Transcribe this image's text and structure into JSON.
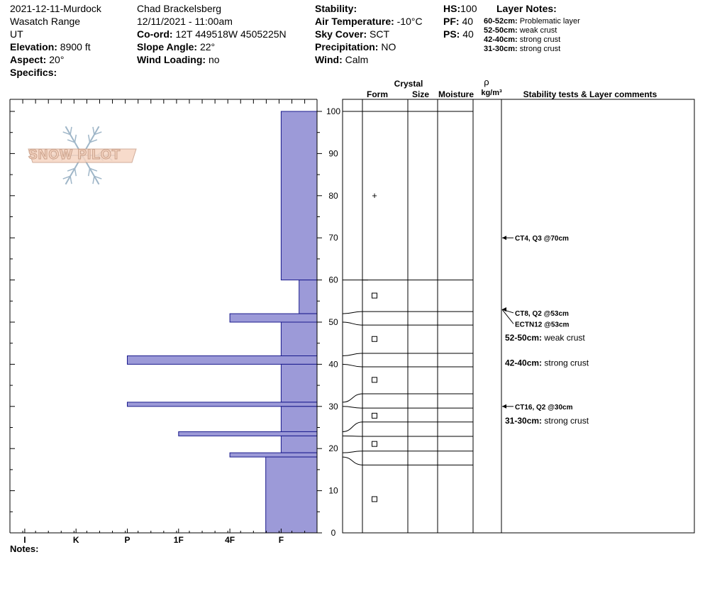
{
  "header": {
    "col1": {
      "site": "2021-12-11-Murdock",
      "range": "Wasatch Range",
      "state": "UT",
      "elevation_label": "Elevation:",
      "elevation": "8900 ft",
      "aspect_label": "Aspect:",
      "aspect": "20°",
      "specifics_label": "Specifics:"
    },
    "col2": {
      "observer": "Chad Brackelsberg",
      "datetime": "12/11/2021 - 11:00am",
      "coord_label": "Co-ord:",
      "coord": "12T 449518W 4505225N",
      "slope_label": "Slope Angle:",
      "slope": "22°",
      "wind_loading_label": "Wind Loading:",
      "wind_loading": "no"
    },
    "col3": {
      "stability_label": "Stability:",
      "air_temp_label": "Air Temperature:",
      "air_temp": "-10°C",
      "sky_label": "Sky Cover:",
      "sky": "SCT",
      "precip_label": "Precipitation:",
      "precip": "NO",
      "wind_label": "Wind:",
      "wind": "Calm"
    },
    "col4": {
      "hs_label": "HS:",
      "hs": "100",
      "pf_label": "PF:",
      "pf": "40",
      "ps_label": "PS:",
      "ps": "40"
    },
    "layer_notes": {
      "title": "Layer Notes:",
      "items": [
        {
          "range": "60-52cm:",
          "text": "Problematic layer"
        },
        {
          "range": "52-50cm:",
          "text": "weak crust"
        },
        {
          "range": "42-40cm:",
          "text": "strong crust"
        },
        {
          "range": "31-30cm:",
          "text": "strong crust"
        }
      ]
    }
  },
  "logo": {
    "text": "SNOW PILOT"
  },
  "notes_label": "Notes:",
  "colors": {
    "hardness_fill": "#9c9ad8",
    "hardness_stroke": "#1a1a8c",
    "logo_fill": "#f6d5c2",
    "logo_snowflake": "#9fb6c8"
  },
  "chart_data": {
    "type": "bar",
    "orientation": "horizontal",
    "title": "",
    "ylim": [
      0,
      100
    ],
    "y_ticks": [
      0,
      10,
      20,
      30,
      40,
      50,
      60,
      70,
      80,
      90,
      100
    ],
    "hardness_ticks": [
      "I",
      "K",
      "P",
      "1F",
      "4F",
      "F"
    ],
    "hardness_axis_scale": "hardness index, 0=F at right edge, I=6 at left",
    "layers": [
      {
        "top": 100,
        "bottom": 60,
        "hardness": "F",
        "value": 0.7
      },
      {
        "top": 60,
        "bottom": 52,
        "hardness": "F-",
        "value": 0.35
      },
      {
        "top": 52,
        "bottom": 50,
        "hardness": "4F",
        "value": 1.7
      },
      {
        "top": 50,
        "bottom": 42,
        "hardness": "F",
        "value": 0.7
      },
      {
        "top": 42,
        "bottom": 40,
        "hardness": "P",
        "value": 3.7
      },
      {
        "top": 40,
        "bottom": 31,
        "hardness": "F",
        "value": 0.7
      },
      {
        "top": 31,
        "bottom": 30,
        "hardness": "P",
        "value": 3.7
      },
      {
        "top": 30,
        "bottom": 24,
        "hardness": "F",
        "value": 0.7
      },
      {
        "top": 24,
        "bottom": 23,
        "hardness": "1F",
        "value": 2.7
      },
      {
        "top": 23,
        "bottom": 19,
        "hardness": "F",
        "value": 0.7
      },
      {
        "top": 19,
        "bottom": 18,
        "hardness": "4F",
        "value": 1.7
      },
      {
        "top": 18,
        "bottom": 0,
        "hardness": "F+",
        "value": 1.0
      }
    ],
    "column_headers": {
      "crystal": "Crystal",
      "form": "Form",
      "size": "Size",
      "moisture": "Moisture",
      "rho": "ρ",
      "density_unit": "kg/m³",
      "comments": "Stability tests & Layer comments"
    },
    "layer_boundaries": [
      {
        "depth": 100,
        "mapped_to": 100
      },
      {
        "depth": 60,
        "mapped_to": 60
      },
      {
        "depth": 52,
        "mapped_to": 52.5
      },
      {
        "depth": 50,
        "mapped_to": 49.3
      },
      {
        "depth": 42,
        "mapped_to": 42.6
      },
      {
        "depth": 40,
        "mapped_to": 39.4
      },
      {
        "depth": 31,
        "mapped_to": 33.0
      },
      {
        "depth": 30,
        "mapped_to": 29.6
      },
      {
        "depth": 24,
        "mapped_to": 26.3
      },
      {
        "depth": 23,
        "mapped_to": 22.9
      },
      {
        "depth": 19,
        "mapped_to": 19.4
      },
      {
        "depth": 18,
        "mapped_to": 16.1
      }
    ],
    "form_symbols": [
      {
        "depth": 80,
        "symbol": "+"
      },
      {
        "depth": 56.3,
        "symbol": "□"
      },
      {
        "depth": 46,
        "symbol": "□"
      },
      {
        "depth": 36.3,
        "symbol": "□"
      },
      {
        "depth": 27.8,
        "symbol": "□"
      },
      {
        "depth": 21.1,
        "symbol": "□"
      },
      {
        "depth": 8,
        "symbol": "□"
      }
    ],
    "comments": [
      {
        "depth": 70,
        "text": "CT4, Q3 @70cm",
        "arrow": true,
        "y_label": 70
      },
      {
        "depth": 53,
        "text": "CT8, Q2 @53cm",
        "arrow": true,
        "y_label": 52.2
      },
      {
        "depth": 53,
        "text": "ECTN12 @53cm",
        "arrow": true,
        "y_label": 49.6
      },
      {
        "depth": 50,
        "range": "52-50cm:",
        "text": "weak crust",
        "arrow": false,
        "y_label": 46.3
      },
      {
        "depth": 40,
        "range": "42-40cm:",
        "text": "strong crust",
        "arrow": false,
        "y_label": 40.3
      },
      {
        "depth": 30,
        "text": "CT16, Q2 @30cm",
        "arrow": true,
        "y_label": 30
      },
      {
        "depth": 30,
        "range": "31-30cm:",
        "text": "strong crust",
        "arrow": false,
        "y_label": 26.6
      }
    ]
  }
}
